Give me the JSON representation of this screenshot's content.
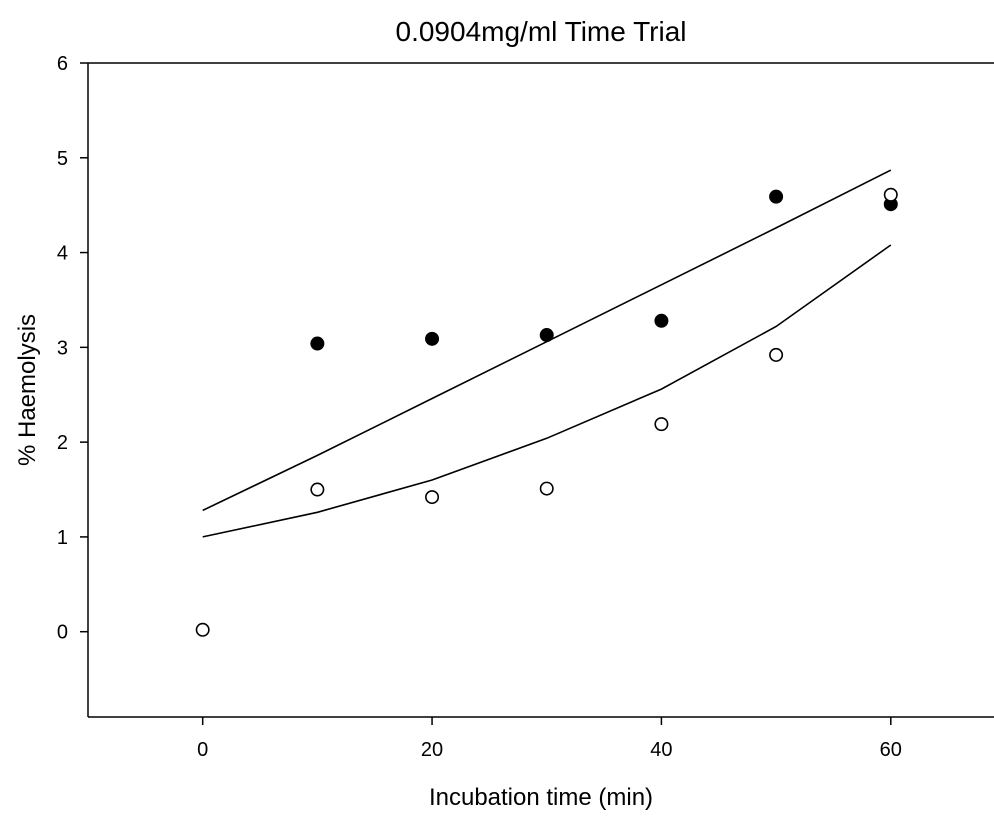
{
  "chart_data": {
    "type": "scatter",
    "title": "0.0904mg/ml Time Trial",
    "xlabel": "Incubation time (min)",
    "ylabel": "% Haemolysis",
    "xlim": [
      -10,
      69
    ],
    "ylim": [
      -0.9,
      6
    ],
    "xticks": [
      0,
      20,
      40,
      60
    ],
    "yticks": [
      0,
      1,
      2,
      3,
      4,
      5,
      6
    ],
    "grid": false,
    "series": [
      {
        "marker": "filled-circle",
        "color": "#000000",
        "x": [
          10,
          20,
          30,
          40,
          50,
          60
        ],
        "y": [
          3.04,
          3.09,
          3.13,
          3.28,
          4.59,
          4.51
        ],
        "fit": {
          "x": [
            0,
            10,
            20,
            30,
            40,
            50,
            60
          ],
          "y": [
            1.28,
            1.86,
            2.46,
            3.06,
            3.66,
            4.26,
            4.87
          ]
        }
      },
      {
        "marker": "open-circle",
        "color": "#000000",
        "x": [
          0,
          10,
          20,
          30,
          40,
          50,
          60
        ],
        "y": [
          0.02,
          1.5,
          1.42,
          1.51,
          2.19,
          2.92,
          4.61
        ],
        "fit": {
          "x": [
            0,
            10,
            20,
            30,
            40,
            50,
            60
          ],
          "y": [
            1.0,
            1.26,
            1.6,
            2.04,
            2.56,
            3.22,
            4.08
          ]
        }
      }
    ]
  }
}
